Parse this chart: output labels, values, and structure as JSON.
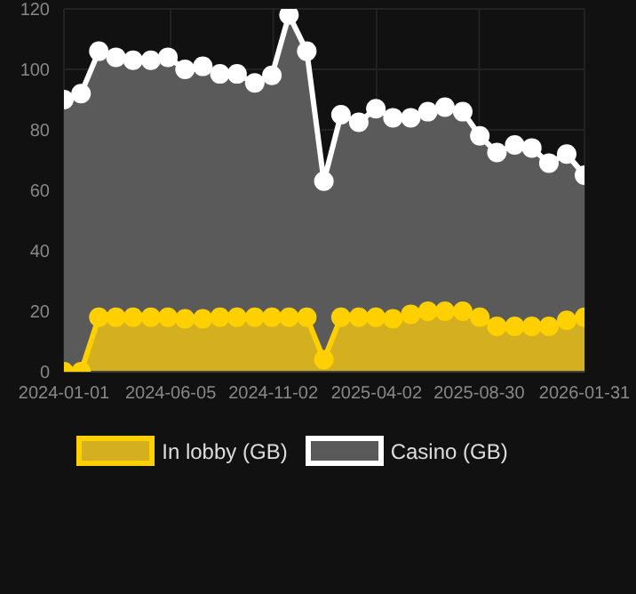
{
  "chart_data": {
    "type": "area",
    "x": [
      "2024-01-01",
      "2024-01-26",
      "2024-02-21",
      "2024-03-17",
      "2024-04-11",
      "2024-05-07",
      "2024-06-01",
      "2024-06-26",
      "2024-07-22",
      "2024-08-16",
      "2024-09-10",
      "2024-10-06",
      "2024-10-31",
      "2024-11-25",
      "2024-12-21",
      "2025-01-15",
      "2025-02-09",
      "2025-03-07",
      "2025-04-01",
      "2025-04-26",
      "2025-05-22",
      "2025-06-16",
      "2025-07-11",
      "2025-08-06",
      "2025-08-31",
      "2025-09-25",
      "2025-10-21",
      "2025-11-15",
      "2025-12-10",
      "2026-01-05",
      "2026-01-31"
    ],
    "series": [
      {
        "name": "In lobby (GB)",
        "color": "#ffd000",
        "values": [
          0,
          0,
          18,
          18,
          18,
          18,
          18,
          17.5,
          17.5,
          18,
          18,
          18,
          18,
          18,
          18,
          4,
          18,
          18,
          18,
          17.5,
          19,
          20,
          20,
          20,
          18,
          15,
          15,
          15,
          15,
          17,
          18
        ]
      },
      {
        "name": "Casino (GB)",
        "color": "#ffffff",
        "values": [
          90,
          92,
          106,
          104,
          103,
          103,
          104,
          100,
          101,
          98.5,
          98.5,
          95.5,
          98,
          118,
          106,
          63,
          85,
          82.5,
          87,
          84,
          84,
          86,
          87.5,
          86,
          78,
          72.5,
          75,
          74,
          69,
          72,
          65
        ]
      }
    ],
    "xlim": [
      "2024-01-01",
      "2026-01-31"
    ],
    "xticks": [
      "2024-01-01",
      "2024-06-05",
      "2024-11-02",
      "2025-04-02",
      "2025-08-30",
      "2026-01-31"
    ],
    "ylim": [
      0,
      120
    ],
    "yticks": [
      0,
      20,
      40,
      60,
      80,
      100,
      120
    ],
    "grid": true,
    "legend": "bottom",
    "marker": "circle",
    "line_style": "solid"
  }
}
